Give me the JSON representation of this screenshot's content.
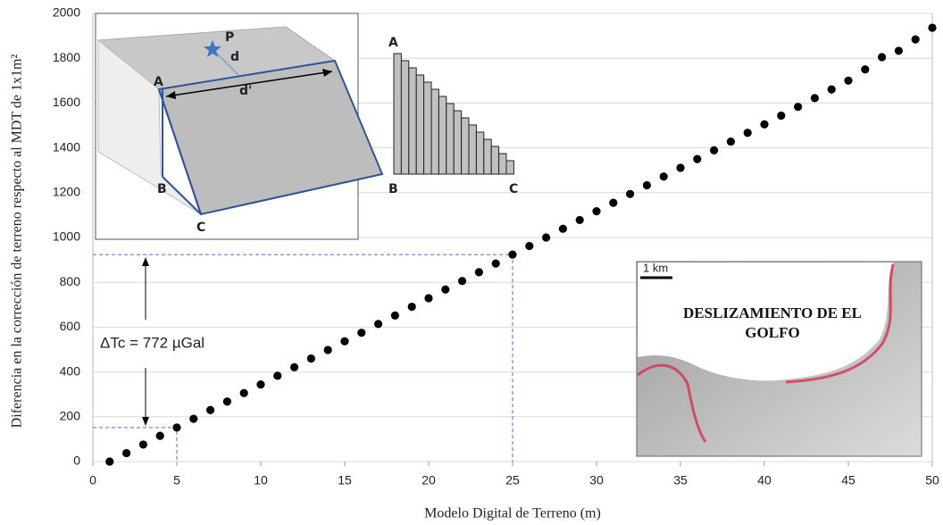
{
  "chart_data": {
    "type": "scatter",
    "x_label": "Modelo Digital de Terreno (m)",
    "y_label": "Diferencia en la corrección de terreno respecto al MDT de 1x1m²",
    "x": [
      1,
      2,
      3,
      4,
      5,
      6,
      7,
      8,
      9,
      10,
      11,
      12,
      13,
      14,
      15,
      16,
      17,
      18,
      19,
      20,
      21,
      22,
      23,
      24,
      25,
      26,
      27,
      28,
      29,
      30,
      31,
      32,
      33,
      34,
      35,
      36,
      37,
      38,
      39,
      40,
      41,
      42,
      43,
      44,
      45,
      46,
      47,
      48,
      49,
      50
    ],
    "values": [
      0,
      38,
      76,
      115,
      152,
      191,
      230,
      268,
      306,
      344,
      383,
      421,
      460,
      498,
      537,
      575,
      614,
      652,
      691,
      729,
      768,
      806,
      845,
      884,
      924,
      962,
      1000,
      1039,
      1078,
      1117,
      1155,
      1194,
      1233,
      1272,
      1311,
      1350,
      1389,
      1428,
      1467,
      1505,
      1544,
      1583,
      1622,
      1661,
      1700,
      1750,
      1805,
      1833,
      1884,
      1936
    ],
    "color": "#000000",
    "xlim": [
      0,
      50
    ],
    "xticks": [
      0,
      5,
      10,
      15,
      20,
      25,
      30,
      35,
      40,
      45,
      50
    ],
    "ylim": [
      0,
      2000
    ],
    "yticks": [
      0,
      200,
      400,
      600,
      800,
      1000,
      1200,
      1400,
      1600,
      1800,
      2000
    ],
    "grid": true,
    "annotation": "ΔTc = 772 µGal",
    "diagram_labels": {
      "p": "P",
      "d": "d",
      "d_prime": "d'",
      "a": "A",
      "b": "B",
      "c": "C",
      "a2": "A",
      "b2": "B",
      "c2": "C"
    },
    "map_scale": "1 km",
    "map_title": "DESLIZAMIENTO DE EL GOLFO"
  }
}
